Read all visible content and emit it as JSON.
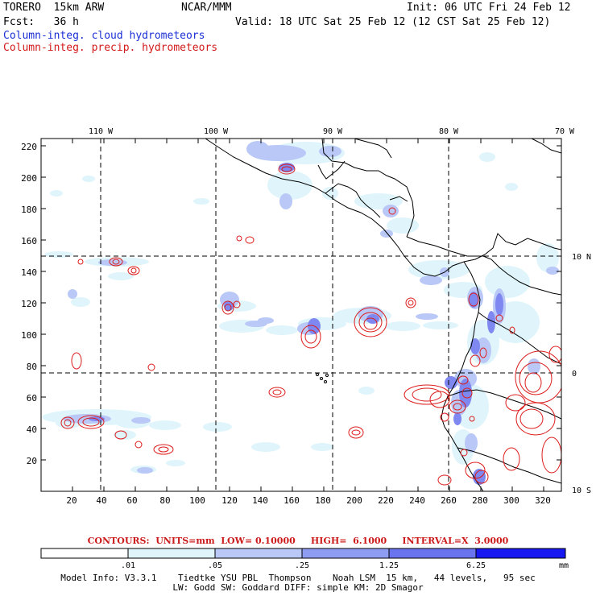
{
  "header": {
    "model": "TORERO  15km ARW",
    "org": "NCAR/MMM",
    "init": "Init: 06 UTC Fri 24 Feb 12",
    "fcst": "Fcst:   36 h",
    "valid": "Valid: 18 UTC Sat 25 Feb 12 (12 CST Sat 25 Feb 12)",
    "field_cloud": "Column-integ. cloud hydrometeors",
    "field_precip": "Column-integ. precip. hydrometeors"
  },
  "map": {
    "top_lon_labels": [
      "110 W",
      "100 W",
      "90 W",
      "80 W",
      "70 W"
    ],
    "right_lat_labels": [
      "10 N",
      "0",
      "10 S"
    ],
    "y_ticks": [
      "20",
      "40",
      "60",
      "80",
      "100",
      "120",
      "140",
      "160",
      "180",
      "200",
      "220"
    ],
    "x_ticks": [
      "20",
      "40",
      "60",
      "80",
      "100",
      "120",
      "140",
      "160",
      "180",
      "200",
      "220",
      "240",
      "260",
      "280",
      "300",
      "320"
    ],
    "colors": {
      "land": "#000000",
      "grid": "#000000",
      "precip_contour": "#dd1c1c",
      "shade_1": "#dff5fb",
      "shade_2": "#b9c8f6",
      "shade_3": "#8e9cf2",
      "shade_4": "#6a74ee",
      "shade_5": "#3b46f2"
    }
  },
  "contours": {
    "text": "CONTOURS:  UNITS=mm  LOW= 0.10000     HIGH=  6.1000     INTERVAL=X  3.0000"
  },
  "colorbar": {
    "labels": [
      ".01",
      ".05",
      ".25",
      "1.25",
      "6.25"
    ],
    "unit": "mm",
    "colors": [
      "#ffffff",
      "#dff5fb",
      "#b9c8f6",
      "#8e9cf2",
      "#6a74ee",
      "#3b46f2",
      "#1818f0"
    ]
  },
  "model_info": {
    "line1": "Model Info: V3.3.1    Tiedtke YSU PBL  Thompson    Noah LSM  15 km,   44 levels,   95 sec",
    "line2": "LW: Godd SW: Goddard DIFF: simple KM: 2D Smagor"
  }
}
